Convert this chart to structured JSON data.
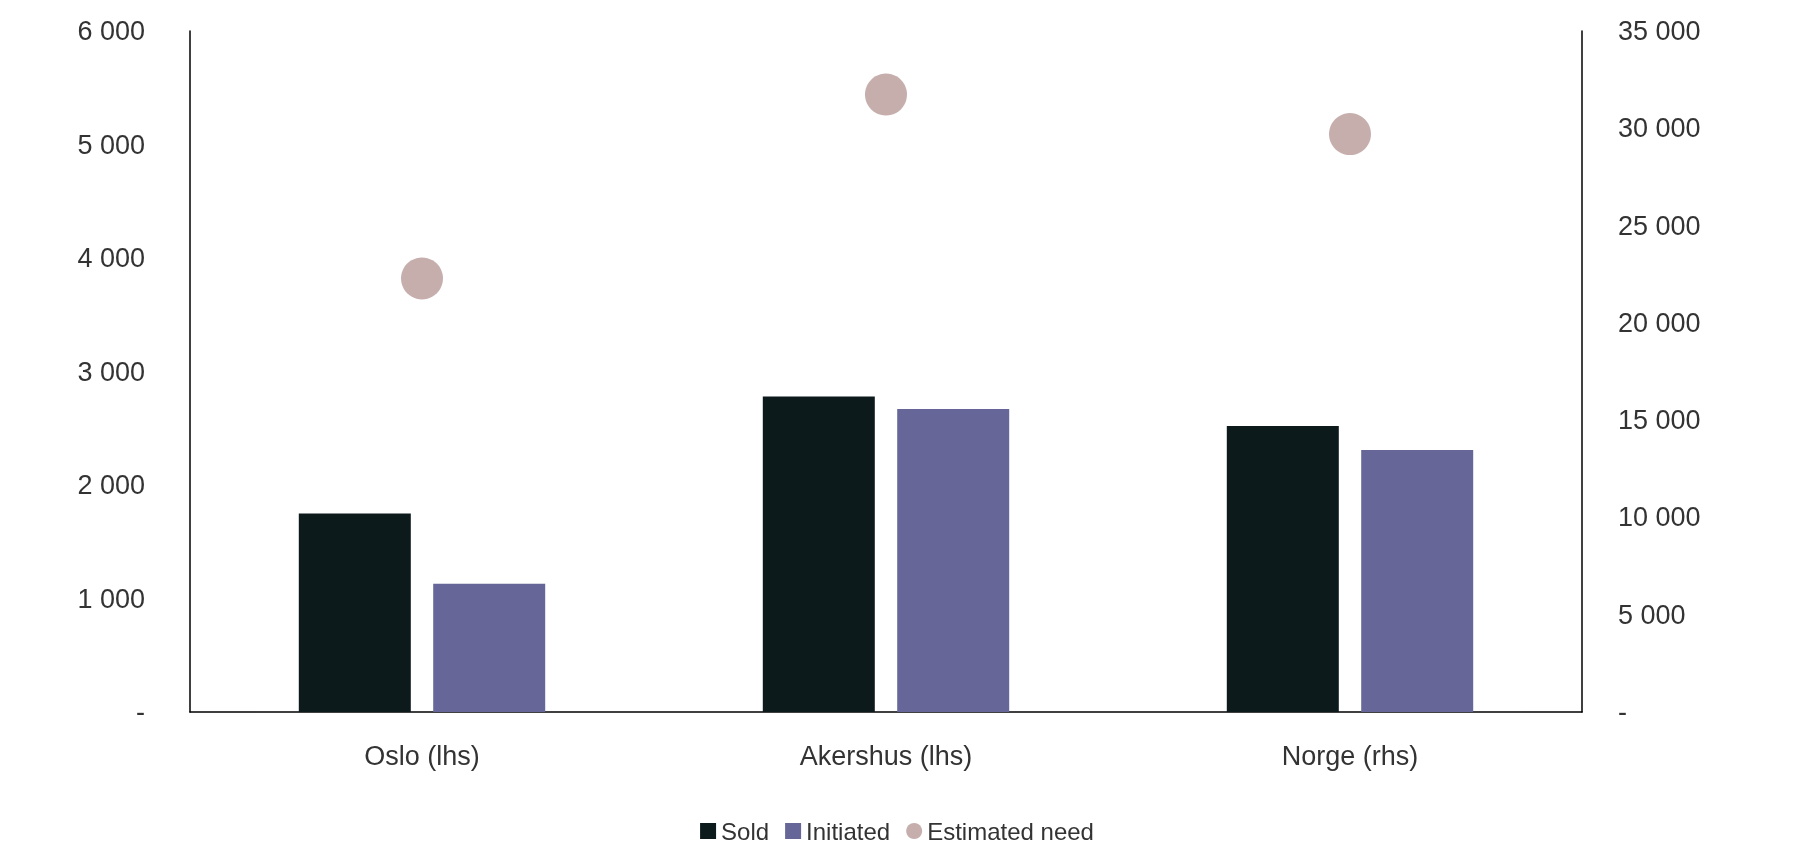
{
  "chart_data": {
    "type": "bar",
    "categories": [
      "Oslo (lhs)",
      "Akershus (lhs)",
      "Norge (rhs)"
    ],
    "series": [
      {
        "name": "Sold",
        "color": "#0d1a1c",
        "values": [
          1750,
          2780,
          null
        ]
      },
      {
        "name": "Initiated",
        "color": "#666699",
        "values": [
          1130,
          2670,
          null
        ]
      },
      {
        "name": "Estimated need",
        "type": "scatter",
        "color": "#b89a98",
        "values": [
          3820,
          5440,
          null
        ]
      },
      {
        "color": "#0d1a1c",
        "axis": "y2",
        "values": [
          null,
          null,
          14700
        ]
      },
      {
        "color": "#666699",
        "axis": "y2",
        "values": [
          null,
          null,
          13470
        ]
      },
      {
        "type": "scatter",
        "color": "#b89a98",
        "axis": "y2",
        "values": [
          null,
          null,
          29700
        ]
      }
    ],
    "ylim": [
      0,
      6000
    ],
    "yticks": [
      {
        "value": 0,
        "label": "-"
      },
      {
        "value": 1000,
        "label": "1 000"
      },
      {
        "value": 2000,
        "label": "2 000"
      },
      {
        "value": 3000,
        "label": "3 000"
      },
      {
        "value": 4000,
        "label": "4 000"
      },
      {
        "value": 5000,
        "label": "5 000"
      },
      {
        "value": 6000,
        "label": "6 000"
      }
    ],
    "y2lim": [
      0,
      35000
    ],
    "y2ticks": [
      {
        "value": 0,
        "label": "-"
      },
      {
        "value": 5000,
        "label": "5 000"
      },
      {
        "value": 10000,
        "label": "10 000"
      },
      {
        "value": 15000,
        "label": "15 000"
      },
      {
        "value": 20000,
        "label": "20 000"
      },
      {
        "value": 25000,
        "label": "25 000"
      },
      {
        "value": 30000,
        "label": "30 000"
      },
      {
        "value": 35000,
        "label": "35 000"
      }
    ],
    "marker": "circle",
    "grid": false,
    "legend": "bottom"
  }
}
